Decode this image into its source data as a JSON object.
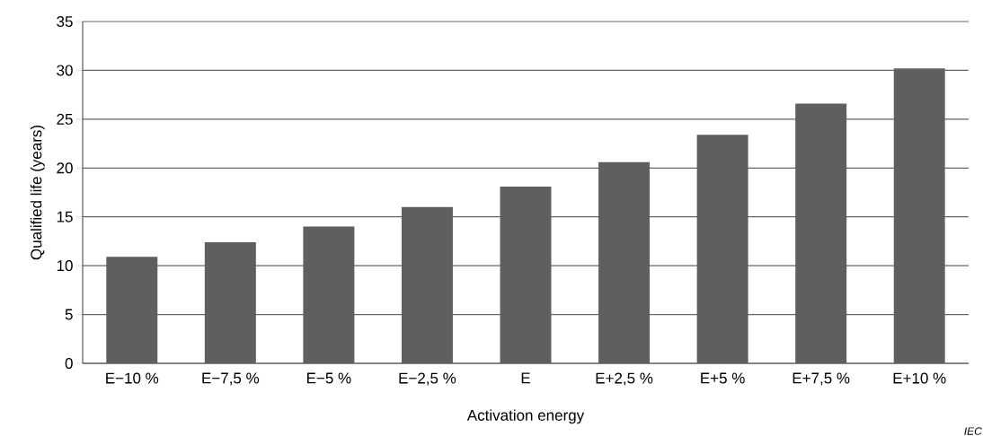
{
  "chart_data": {
    "type": "bar",
    "xlabel": "Activation energy",
    "ylabel": "Qualified life (years)",
    "categories": [
      "E−10 %",
      "E−7,5 %",
      "E−5 %",
      "E−2,5 %",
      "E",
      "E+2,5 %",
      "E+5 %",
      "E+7,5 %",
      "E+10 %"
    ],
    "values": [
      10.9,
      12.4,
      14.0,
      16.0,
      18.1,
      20.6,
      23.4,
      26.6,
      30.2
    ],
    "color": "#5f5f5f",
    "ylim": [
      0,
      35
    ],
    "yticks": [
      0,
      5,
      10,
      15,
      20,
      25,
      30,
      35
    ],
    "grid": "y",
    "annotations": [
      "IEC"
    ]
  }
}
